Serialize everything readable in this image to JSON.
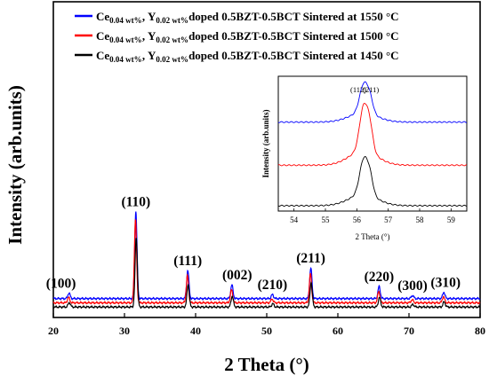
{
  "chart_data": [
    {
      "type": "line",
      "xlabel": "2 Theta (°)",
      "ylabel": "Intensity (arb.units)",
      "xlim": [
        20,
        80
      ],
      "x_ticks": [
        "20",
        "30",
        "40",
        "50",
        "60",
        "70",
        "80"
      ],
      "legend": {
        "placement": "top",
        "items": [
          {
            "prefix": "Ce",
            "sub1": "0.04 wt%",
            "mid": ", Y",
            "sub2": "0.02 wt%",
            "suffix": " doped 0.5BZT-0.5BCT  Sintered at 1550 °C",
            "color": "#0000ff"
          },
          {
            "prefix": "Ce",
            "sub1": "0.04 wt%",
            "mid": ", Y",
            "sub2": "0.02 wt%",
            "suffix": " doped 0.5BZT-0.5BCT  Sintered at 1500 °C",
            "color": "#ff0000"
          },
          {
            "prefix": "Ce",
            "sub1": "0.04 wt%",
            "mid": ", Y",
            "sub2": "0.02 wt%",
            "suffix": " doped 0.5BZT-0.5BCT  Sintered at 1450 °C",
            "color": "#000000"
          }
        ]
      },
      "series": [
        {
          "name": "Sintered at 1550 °C",
          "color": "#0000ff",
          "baseline": 0.62
        },
        {
          "name": "Sintered at 1500 °C",
          "color": "#ff0000",
          "baseline": 0.36
        },
        {
          "name": "Sintered at 1450 °C",
          "color": "#000000",
          "baseline": 0.1
        }
      ],
      "peaks": [
        {
          "label": "(100)",
          "x": 22.2,
          "height": 0.35
        },
        {
          "label": "(110)",
          "x": 31.6,
          "height": 5.4
        },
        {
          "label": "(111)",
          "x": 38.9,
          "height": 1.75
        },
        {
          "label": "(002)",
          "x": 45.1,
          "height": 0.85
        },
        {
          "label": "(210)",
          "x": 50.8,
          "height": 0.25
        },
        {
          "label": "(211)",
          "x": 56.2,
          "height": 1.9
        },
        {
          "label": "(220)",
          "x": 65.8,
          "height": 0.75
        },
        {
          "label": "(300)",
          "x": 70.5,
          "height": 0.2
        },
        {
          "label": "(310)",
          "x": 74.9,
          "height": 0.4
        }
      ]
    },
    {
      "type": "line",
      "xlabel": "2 Theta (°)",
      "ylabel": "Intensity (arb.units)",
      "xlim": [
        53.5,
        59.5
      ],
      "x_ticks": [
        "54",
        "55",
        "56",
        "57",
        "58",
        "59"
      ],
      "annotations": [
        "(112)",
        "(211)"
      ],
      "series": [
        {
          "name": "Sintered at 1550 °C",
          "color": "#0000ff",
          "baseline": 0.66,
          "height": 0.27
        },
        {
          "name": "Sintered at 1500 °C",
          "color": "#ff0000",
          "baseline": 0.34,
          "height": 0.42
        },
        {
          "name": "Sintered at 1450 °C",
          "color": "#000000",
          "baseline": 0.04,
          "height": 0.33
        }
      ]
    }
  ]
}
